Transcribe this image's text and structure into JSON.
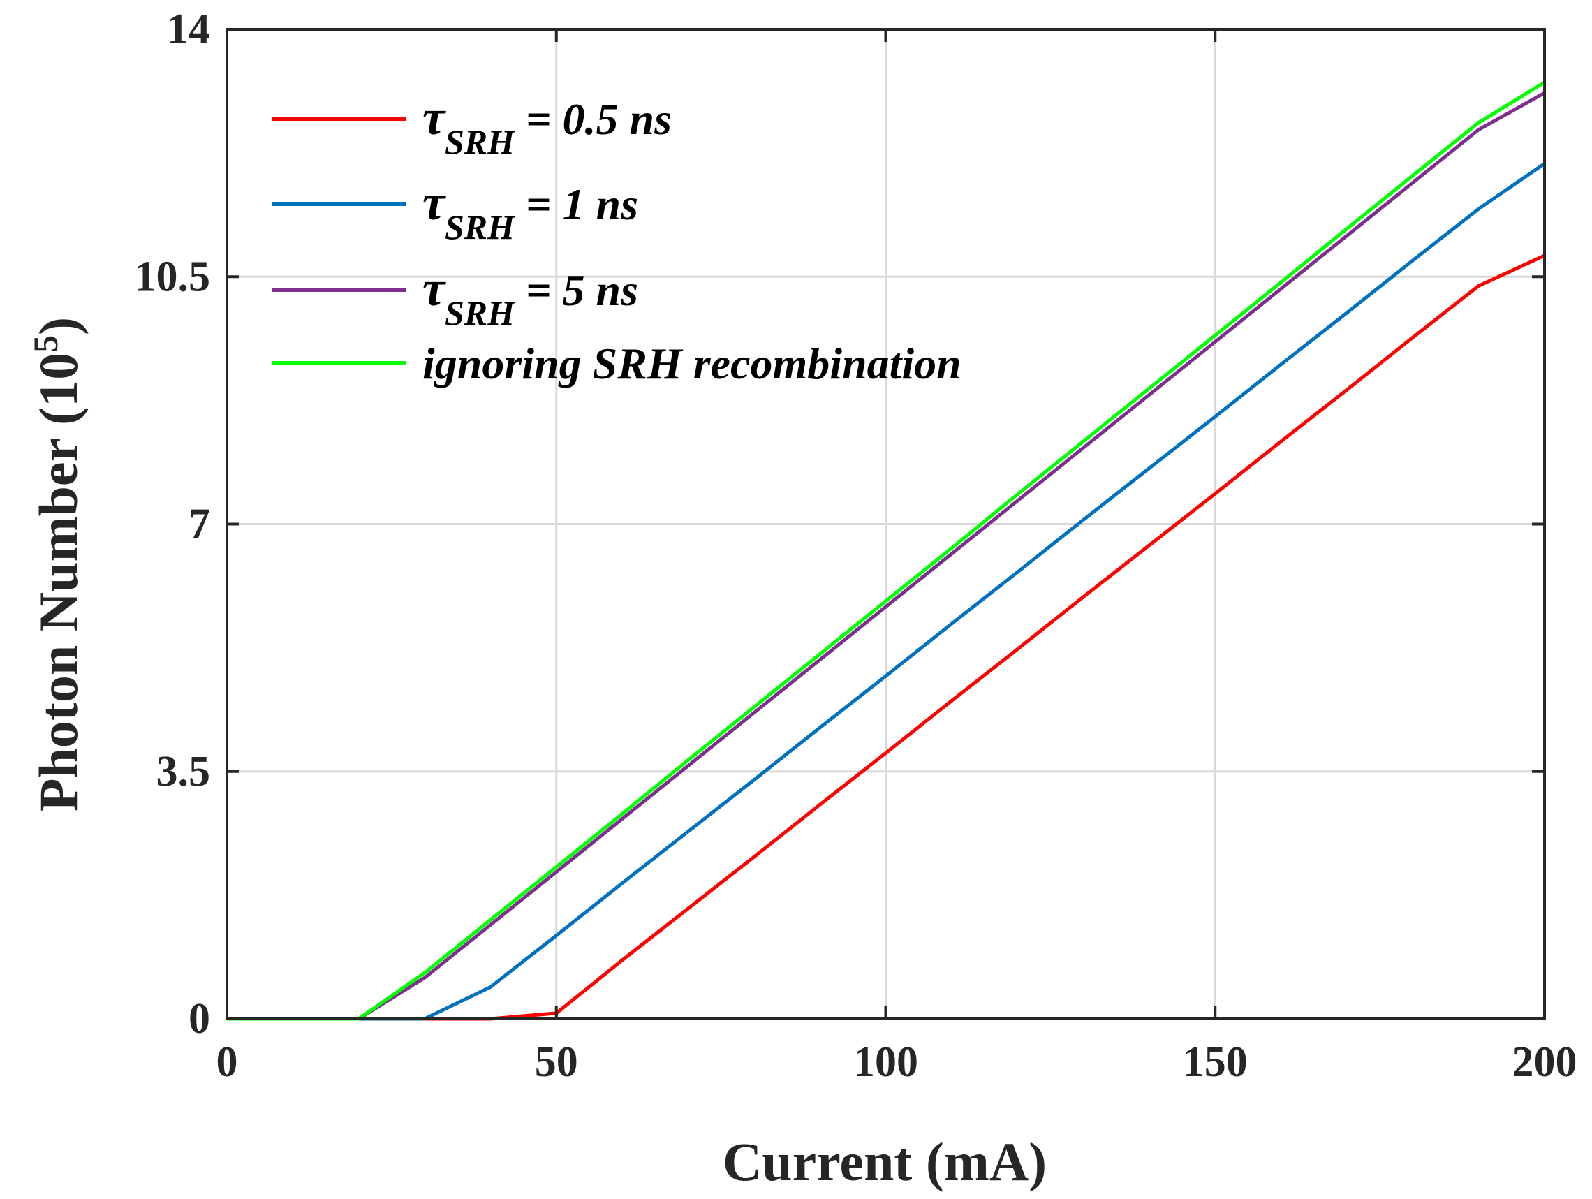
{
  "chart_data": {
    "type": "line",
    "title": "",
    "xlabel": "Current (mA)",
    "ylabel_main": "Photon Number (10",
    "ylabel_exp": "5",
    "ylabel_close": ")",
    "xlim": [
      0,
      200
    ],
    "ylim": [
      0,
      14
    ],
    "x_ticks": [
      0,
      50,
      100,
      150,
      200
    ],
    "x_tick_labels": [
      "0",
      "50",
      "100",
      "150",
      "200"
    ],
    "y_ticks": [
      0,
      3.5,
      7,
      10.5,
      14
    ],
    "y_tick_labels": [
      "0",
      "3.5",
      "7",
      "10.5",
      "14"
    ],
    "grid": true,
    "legend_position": "top-left",
    "series": [
      {
        "name": "τSRH = 0.5 ns",
        "tau": "τ",
        "sub": "SRH",
        "suffix": " = 0.5 ns",
        "color": "#ff0000",
        "x": [
          0,
          10,
          20,
          30,
          40,
          50,
          60,
          70,
          80,
          90,
          100,
          110,
          120,
          130,
          140,
          150,
          160,
          170,
          180,
          190,
          200
        ],
        "y": [
          0,
          0,
          0,
          0,
          0,
          0.08,
          0.83,
          1.56,
          2.29,
          3.03,
          3.76,
          4.5,
          5.23,
          5.97,
          6.7,
          7.43,
          8.17,
          8.9,
          9.64,
          10.37,
          10.8
        ]
      },
      {
        "name": "τSRH = 1 ns",
        "tau": "τ",
        "sub": "SRH",
        "suffix": " = 1 ns",
        "color": "#0072bd",
        "x": [
          0,
          10,
          20,
          30,
          40,
          50,
          60,
          70,
          80,
          90,
          100,
          110,
          120,
          130,
          140,
          150,
          160,
          170,
          180,
          190,
          200
        ],
        "y": [
          0,
          0,
          0,
          0,
          0.45,
          1.18,
          1.92,
          2.65,
          3.38,
          4.12,
          4.85,
          5.59,
          6.32,
          7.06,
          7.79,
          8.52,
          9.26,
          9.99,
          10.73,
          11.46,
          12.1
        ]
      },
      {
        "name": "τSRH = 5 ns",
        "tau": "τ",
        "sub": "SRH",
        "suffix": " = 5 ns",
        "color": "#7e2f8e",
        "x": [
          0,
          10,
          20,
          30,
          40,
          50,
          60,
          70,
          80,
          90,
          100,
          110,
          120,
          130,
          140,
          150,
          160,
          170,
          180,
          190,
          200
        ],
        "y": [
          0,
          0,
          0,
          0.58,
          1.33,
          2.08,
          2.83,
          3.58,
          4.33,
          5.08,
          5.83,
          6.58,
          7.33,
          8.08,
          8.83,
          9.58,
          10.33,
          11.08,
          11.83,
          12.58,
          13.1
        ]
      },
      {
        "name": "ignoring SRH recombination",
        "tau": "",
        "sub": "",
        "suffix": "ignoring SRH recombination",
        "color": "#00ff00",
        "x": [
          0,
          10,
          20,
          30,
          40,
          50,
          60,
          70,
          80,
          90,
          100,
          110,
          120,
          130,
          140,
          150,
          160,
          170,
          180,
          190,
          200
        ],
        "y": [
          0,
          0,
          0,
          0.65,
          1.4,
          2.15,
          2.9,
          3.66,
          4.41,
          5.16,
          5.91,
          6.66,
          7.42,
          8.17,
          8.92,
          9.67,
          10.42,
          11.18,
          11.93,
          12.68,
          13.25
        ]
      }
    ]
  }
}
